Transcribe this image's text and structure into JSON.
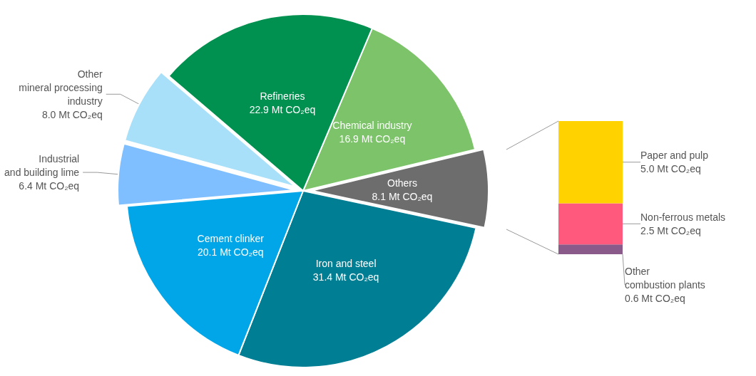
{
  "chart_data": [
    {
      "type": "pie",
      "categories": [
        "Chemical industry",
        "Others",
        "Iron and steel",
        "Cement clinker",
        "Industrial\nand building lime",
        "Other\nmineral processing\nindustry",
        "Refineries"
      ],
      "values": [
        16.9,
        8.1,
        31.4,
        20.1,
        6.4,
        8.0,
        22.9
      ],
      "value_labels": [
        "16.9 Mt CO₂eq",
        "8.1 Mt CO₂eq",
        "31.4 Mt CO₂eq",
        "20.1 Mt CO₂eq",
        "6.4 Mt CO₂eq",
        "8.0 Mt CO₂eq",
        "22.9 Mt CO₂eq"
      ],
      "colors": [
        "#7cc36a",
        "#6d6d6d",
        "#007e93",
        "#00a6e8",
        "#7fbfff",
        "#a8e0fa",
        "#00904f"
      ]
    },
    {
      "type": "bar",
      "stacked": true,
      "categories": [
        null
      ],
      "series": [
        {
          "name": "Other\ncombustion plants",
          "color": "#8a5a8a",
          "values": [
            0.6
          ],
          "value_labels": [
            "0.6 Mt CO₂eq"
          ]
        },
        {
          "name": "Non-ferrous metals",
          "color": "#ff5a7e",
          "values": [
            2.5
          ],
          "value_labels": [
            "2.5 Mt CO₂eq"
          ]
        },
        {
          "name": "Paper and pulp",
          "color": "#ffd200",
          "values": [
            5.0
          ],
          "value_labels": [
            "5.0 Mt CO₂eq"
          ]
        }
      ]
    }
  ]
}
